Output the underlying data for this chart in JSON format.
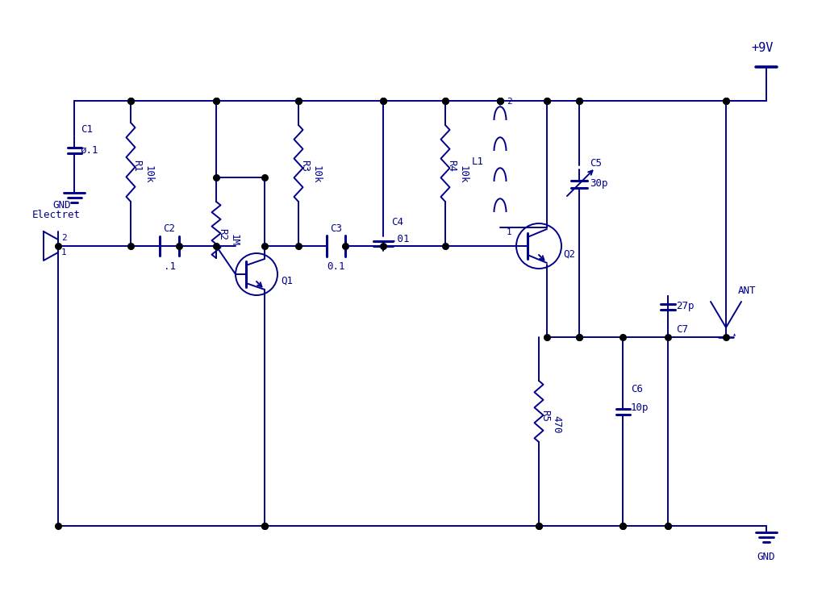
{
  "bg": "white",
  "C": "#00008B",
  "LW": 1.4,
  "FS": 9,
  "supply": "+9V",
  "gnd_top": "GND",
  "gnd_bot": "GND",
  "ant": "ANT",
  "electret": "Electret",
  "C1_label": "C1",
  "C1_val": "ø.1",
  "C2_label": "C2",
  "C2_val": ".1",
  "C3_label": "C3",
  "C3_val": "0.1",
  "C4_label": "C4",
  "C4_val": ".01",
  "C5_label": "C5",
  "C5_val": "30p",
  "C6_label": "C6",
  "C6_val": "10p",
  "C7_label": "C7",
  "C7_val": "27p",
  "R1_label": "R1",
  "R1_val": "10k",
  "R2_label": "R2",
  "R2_val": "1M",
  "R3_label": "R3",
  "R3_val": "10k",
  "R4_label": "R4",
  "R4_val": "10k",
  "R5_label": "R5",
  "R5_val": "470",
  "L1_label": "L1",
  "L1_t": "2",
  "L1_b": "1",
  "Q1_label": "Q1",
  "Q2_label": "Q2"
}
